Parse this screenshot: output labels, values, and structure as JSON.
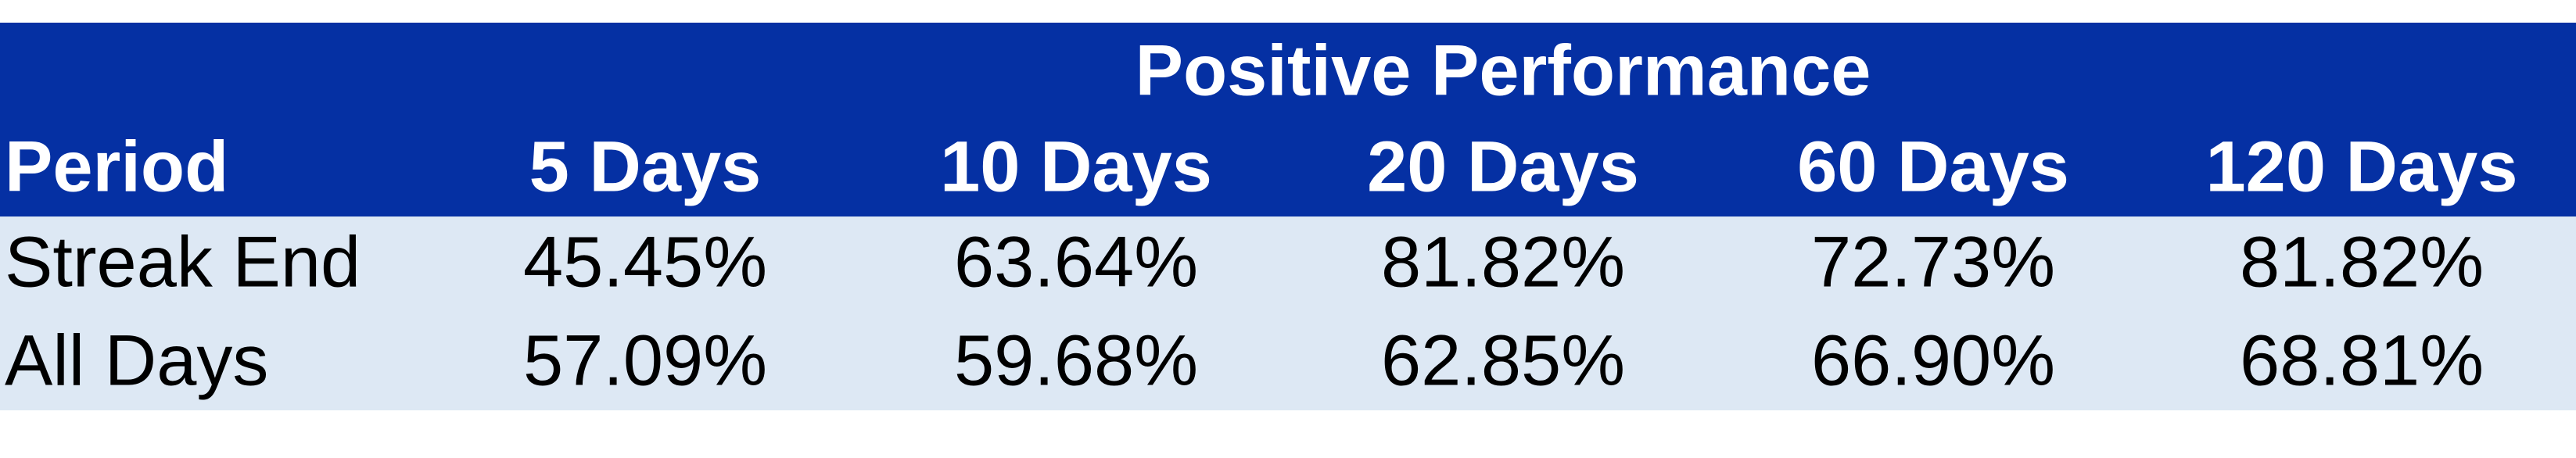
{
  "header": {
    "title": "Positive Performance"
  },
  "table": {
    "columns": [
      "Period",
      "5 Days",
      "10 Days",
      "20 Days",
      "60 Days",
      "120 Days"
    ],
    "rows": [
      [
        "Streak End",
        "45.45%",
        "63.64%",
        "81.82%",
        "72.73%",
        "81.82%"
      ],
      [
        "All Days",
        "57.09%",
        "59.68%",
        "62.85%",
        "66.90%",
        "68.81%"
      ]
    ]
  }
}
